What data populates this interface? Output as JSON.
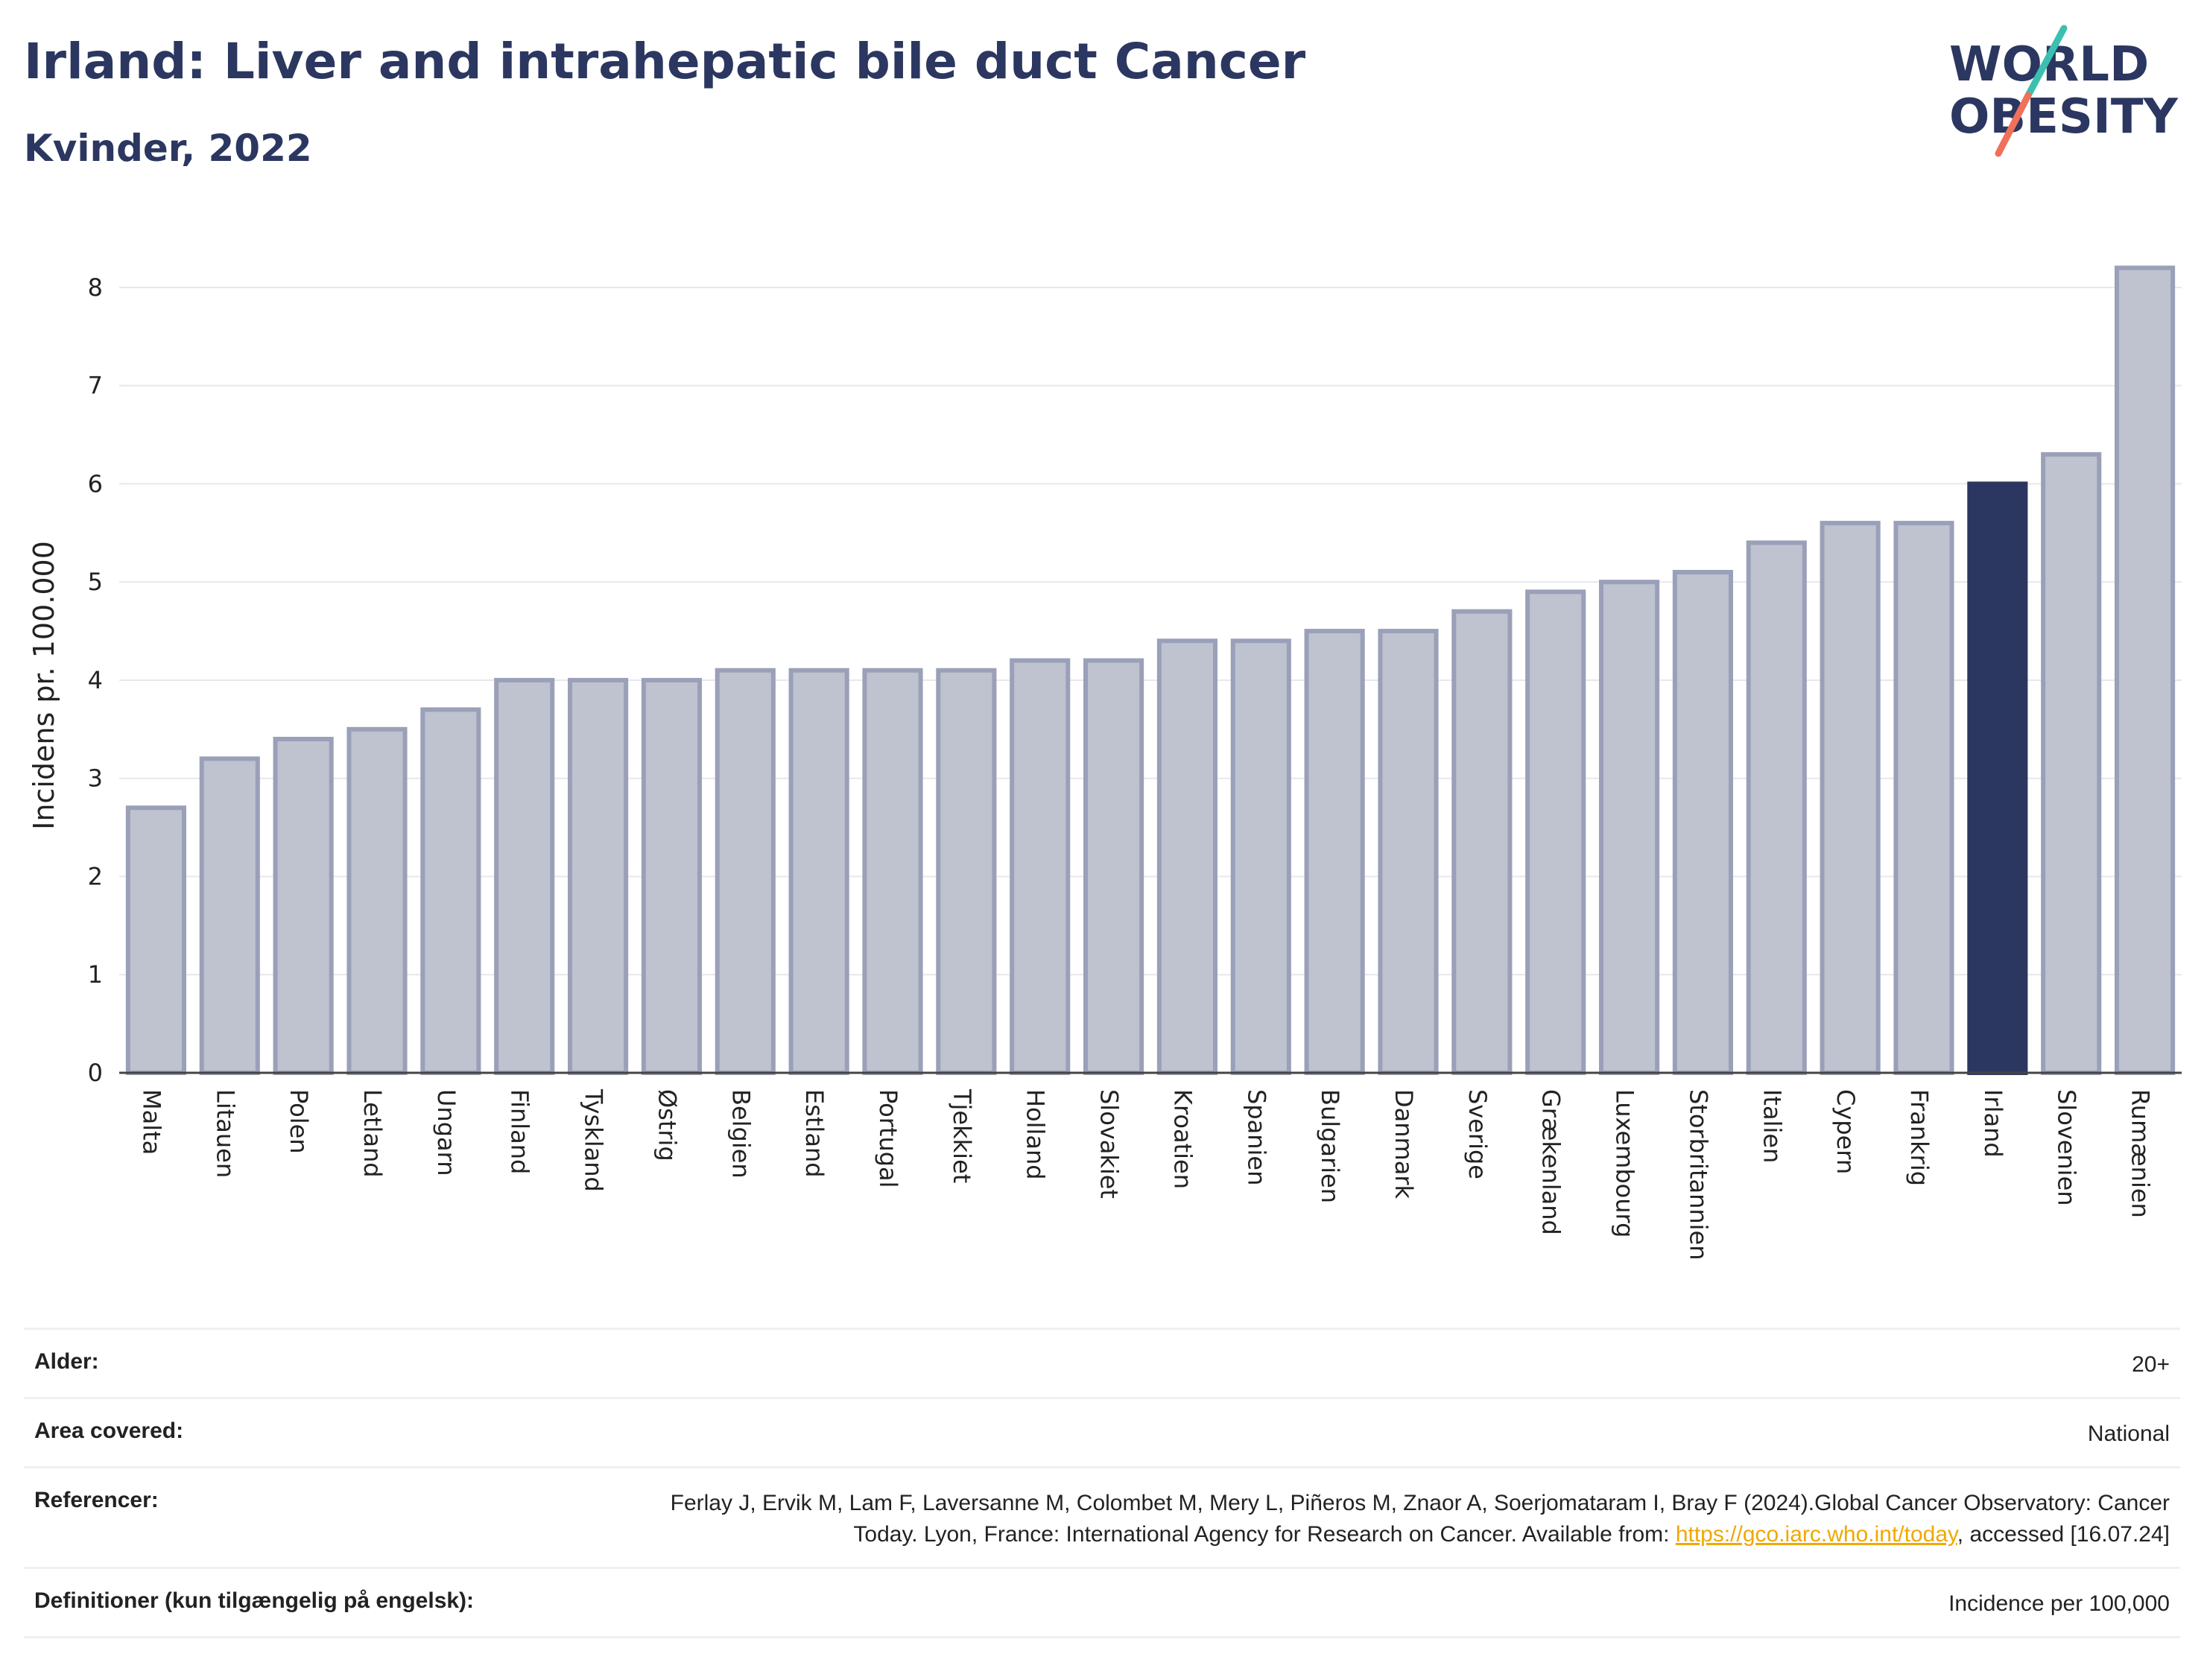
{
  "header": {
    "title": "Irland: Liver and intrahepatic bile duct Cancer",
    "subtitle": "Kvinder, 2022"
  },
  "logo": {
    "line1": "WORLD",
    "line2": "OBESITY"
  },
  "colors": {
    "bar": "#bfc2cf",
    "bar_stroke": "#9aa0b8",
    "highlight": "#2b3760",
    "grid": "#e6e8ee"
  },
  "chart_data": {
    "type": "bar",
    "ylabel": "Incidens pr. 100.000",
    "ylim": [
      0,
      8.5
    ],
    "yticks": [
      0,
      1,
      2,
      3,
      4,
      5,
      6,
      7,
      8
    ],
    "grid": true,
    "highlight": "Irland",
    "categories": [
      "Malta",
      "Litauen",
      "Polen",
      "Letland",
      "Ungarn",
      "Finland",
      "Tyskland",
      "Østrig",
      "Belgien",
      "Estland",
      "Portugal",
      "Tjekkiet",
      "Holland",
      "Slovakiet",
      "Kroatien",
      "Spanien",
      "Bulgarien",
      "Danmark",
      "Sverige",
      "Grækenland",
      "Luxembourg",
      "Storbritannien",
      "Italien",
      "Cypern",
      "Frankrig",
      "Irland",
      "Slovenien",
      "Rumænien"
    ],
    "values": [
      2.7,
      3.2,
      3.4,
      3.5,
      3.7,
      4.0,
      4.0,
      4.0,
      4.1,
      4.1,
      4.1,
      4.1,
      4.2,
      4.2,
      4.4,
      4.4,
      4.5,
      4.5,
      4.7,
      4.9,
      5.0,
      5.1,
      5.4,
      5.6,
      5.6,
      6.0,
      6.3,
      8.2
    ]
  },
  "info": {
    "age_label": "Alder:",
    "age_value": "20+",
    "area_label": "Area covered:",
    "area_value": "National",
    "ref_label": "Referencer:",
    "ref_text": "Ferlay J, Ervik M, Lam F, Laversanne M, Colombet M, Mery L, Piñeros M, Znaor A, Soerjomataram I, Bray F (2024).Global Cancer Observatory: Cancer Today. Lyon, France: International Agency for Research on Cancer. Available from: ",
    "ref_link": "https://gco.iarc.who.int/today",
    "ref_suffix": ", accessed [16.07.24]",
    "def_label": "Definitioner (kun tilgængelig på engelsk):",
    "def_value": "Incidence per 100,000"
  }
}
